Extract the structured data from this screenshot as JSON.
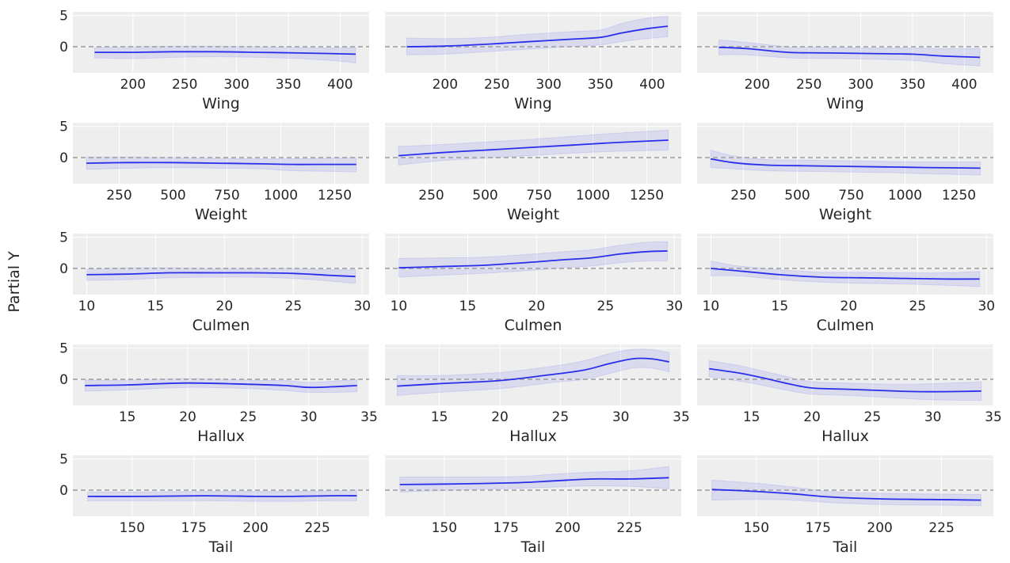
{
  "figure": {
    "ylabel": "Partial Y",
    "ylim": [
      -4.2,
      5.6
    ],
    "yticks": [
      0,
      5
    ],
    "line_color": "#2a2eec",
    "band_color": "#2a2eec",
    "reference_line_color": "#a8a8a8",
    "panel_bg": "#eeeeee",
    "grid_color": "#ffffff"
  },
  "chart_data": [
    {
      "type": "line",
      "row": 0,
      "col": 0,
      "xlabel": "Wing",
      "xlim": [
        142,
        428
      ],
      "xticks": [
        200,
        250,
        300,
        350,
        400
      ],
      "x": [
        163,
        200,
        240,
        280,
        320,
        360,
        390,
        415
      ],
      "y": [
        -0.9,
        -0.9,
        -0.8,
        -0.8,
        -0.9,
        -1.0,
        -1.1,
        -1.2
      ],
      "lower": [
        -1.8,
        -1.9,
        -1.7,
        -1.6,
        -1.7,
        -1.9,
        -2.2,
        -2.6
      ],
      "upper": [
        -0.1,
        0.0,
        0.1,
        0.1,
        0.0,
        -0.1,
        -0.2,
        -0.1
      ]
    },
    {
      "type": "line",
      "row": 0,
      "col": 1,
      "xlabel": "Wing",
      "xlim": [
        142,
        428
      ],
      "xticks": [
        200,
        250,
        300,
        350,
        400
      ],
      "x": [
        163,
        200,
        240,
        280,
        320,
        350,
        370,
        395,
        415
      ],
      "y": [
        0.0,
        0.1,
        0.4,
        0.8,
        1.2,
        1.5,
        2.2,
        2.9,
        3.3
      ],
      "lower": [
        -1.3,
        -1.2,
        -0.8,
        -0.4,
        0.0,
        0.3,
        0.8,
        1.3,
        1.6
      ],
      "upper": [
        1.4,
        1.3,
        1.5,
        2.0,
        2.4,
        2.7,
        3.7,
        4.6,
        4.9
      ]
    },
    {
      "type": "line",
      "row": 0,
      "col": 2,
      "xlabel": "Wing",
      "xlim": [
        142,
        428
      ],
      "xticks": [
        200,
        250,
        300,
        350,
        400
      ],
      "x": [
        163,
        190,
        230,
        270,
        310,
        350,
        380,
        415
      ],
      "y": [
        -0.1,
        -0.3,
        -0.9,
        -1.0,
        -1.1,
        -1.2,
        -1.5,
        -1.7
      ],
      "lower": [
        -1.3,
        -1.3,
        -1.8,
        -1.9,
        -2.0,
        -2.2,
        -2.7,
        -3.1
      ],
      "upper": [
        1.1,
        0.7,
        0.0,
        -0.1,
        -0.2,
        -0.2,
        -0.3,
        -0.3
      ]
    },
    {
      "type": "line",
      "row": 1,
      "col": 0,
      "xlabel": "Weight",
      "xlim": [
        35,
        1410
      ],
      "xticks": [
        250,
        500,
        750,
        1000,
        1250
      ],
      "x": [
        98,
        300,
        500,
        700,
        900,
        1050,
        1200,
        1350
      ],
      "y": [
        -0.9,
        -0.8,
        -0.8,
        -0.9,
        -1.0,
        -1.1,
        -1.1,
        -1.1
      ],
      "lower": [
        -1.9,
        -1.7,
        -1.6,
        -1.7,
        -1.8,
        -2.1,
        -2.2,
        -2.3
      ],
      "upper": [
        0.1,
        0.1,
        0.0,
        -0.1,
        -0.2,
        -0.2,
        -0.1,
        0.0
      ]
    },
    {
      "type": "line",
      "row": 1,
      "col": 1,
      "xlabel": "Weight",
      "xlim": [
        35,
        1410
      ],
      "xticks": [
        250,
        500,
        750,
        1000,
        1250
      ],
      "x": [
        98,
        300,
        500,
        700,
        900,
        1100,
        1350
      ],
      "y": [
        0.3,
        0.8,
        1.2,
        1.6,
        2.0,
        2.4,
        2.8
      ],
      "lower": [
        -1.2,
        -0.5,
        -0.1,
        0.3,
        0.7,
        1.0,
        1.2
      ],
      "upper": [
        1.8,
        2.1,
        2.5,
        2.9,
        3.4,
        3.9,
        4.4
      ]
    },
    {
      "type": "line",
      "row": 1,
      "col": 2,
      "xlabel": "Weight",
      "xlim": [
        35,
        1410
      ],
      "xticks": [
        250,
        500,
        750,
        1000,
        1250
      ],
      "x": [
        98,
        200,
        350,
        500,
        700,
        900,
        1100,
        1350
      ],
      "y": [
        -0.2,
        -0.8,
        -1.2,
        -1.3,
        -1.4,
        -1.5,
        -1.6,
        -1.7
      ],
      "lower": [
        -1.6,
        -1.8,
        -2.1,
        -2.2,
        -2.3,
        -2.4,
        -2.6,
        -2.8
      ],
      "upper": [
        1.2,
        0.3,
        -0.3,
        -0.4,
        -0.5,
        -0.6,
        -0.7,
        -0.7
      ]
    },
    {
      "type": "line",
      "row": 2,
      "col": 0,
      "xlabel": "Culmen",
      "xlim": [
        9.0,
        30.5
      ],
      "xticks": [
        10,
        15,
        20,
        25,
        30
      ],
      "x": [
        10,
        13,
        16,
        19,
        22,
        25,
        27.5,
        29.5
      ],
      "y": [
        -1.0,
        -0.9,
        -0.7,
        -0.7,
        -0.7,
        -0.8,
        -1.1,
        -1.3
      ],
      "lower": [
        -1.9,
        -1.8,
        -1.5,
        -1.4,
        -1.4,
        -1.6,
        -2.0,
        -2.4
      ],
      "upper": [
        -0.1,
        0.1,
        0.1,
        0.0,
        0.0,
        0.0,
        -0.2,
        -0.2
      ]
    },
    {
      "type": "line",
      "row": 2,
      "col": 1,
      "xlabel": "Culmen",
      "xlim": [
        9.0,
        30.5
      ],
      "xticks": [
        10,
        15,
        20,
        25,
        30
      ],
      "x": [
        10,
        13,
        16,
        19,
        22,
        24,
        26,
        28,
        29.5
      ],
      "y": [
        0.1,
        0.3,
        0.5,
        0.9,
        1.4,
        1.7,
        2.3,
        2.7,
        2.8
      ],
      "lower": [
        -1.4,
        -1.1,
        -0.8,
        -0.4,
        0.1,
        0.4,
        0.9,
        1.2,
        1.2
      ],
      "upper": [
        1.6,
        1.7,
        1.8,
        2.2,
        2.7,
        3.0,
        3.7,
        4.2,
        4.3
      ]
    },
    {
      "type": "line",
      "row": 2,
      "col": 2,
      "xlabel": "Culmen",
      "xlim": [
        9.0,
        30.5
      ],
      "xticks": [
        10,
        15,
        20,
        25,
        30
      ],
      "x": [
        10,
        12,
        15,
        18,
        21,
        24,
        27,
        29.5
      ],
      "y": [
        0.0,
        -0.4,
        -1.0,
        -1.4,
        -1.5,
        -1.6,
        -1.7,
        -1.7
      ],
      "lower": [
        -1.2,
        -1.2,
        -1.8,
        -2.2,
        -2.4,
        -2.5,
        -2.7,
        -2.9
      ],
      "upper": [
        1.2,
        0.4,
        -0.2,
        -0.6,
        -0.6,
        -0.7,
        -0.7,
        -0.5
      ]
    },
    {
      "type": "line",
      "row": 3,
      "col": 0,
      "xlabel": "Hallux",
      "xlim": [
        10.5,
        35.0
      ],
      "xticks": [
        15,
        20,
        25,
        30,
        35
      ],
      "x": [
        11.5,
        15,
        20,
        25,
        28,
        30,
        32,
        34
      ],
      "y": [
        -1.0,
        -0.9,
        -0.6,
        -0.8,
        -1.0,
        -1.3,
        -1.2,
        -1.0
      ],
      "lower": [
        -1.9,
        -1.7,
        -1.3,
        -1.5,
        -1.8,
        -2.1,
        -2.1,
        -2.0
      ],
      "upper": [
        -0.1,
        -0.1,
        0.1,
        -0.1,
        -0.2,
        -0.5,
        -0.3,
        0.0
      ]
    },
    {
      "type": "line",
      "row": 3,
      "col": 1,
      "xlabel": "Hallux",
      "xlim": [
        10.5,
        35.0
      ],
      "xticks": [
        15,
        20,
        25,
        30,
        35
      ],
      "x": [
        11.5,
        15,
        20,
        24,
        27,
        29,
        31,
        32.5,
        34
      ],
      "y": [
        -1.1,
        -0.7,
        -0.2,
        0.7,
        1.5,
        2.5,
        3.3,
        3.3,
        2.8
      ],
      "lower": [
        -2.6,
        -2.1,
        -1.5,
        -0.6,
        0.0,
        0.9,
        1.8,
        1.8,
        1.2
      ],
      "upper": [
        0.6,
        0.6,
        1.1,
        2.0,
        3.0,
        4.1,
        4.8,
        4.8,
        4.3
      ]
    },
    {
      "type": "line",
      "row": 3,
      "col": 2,
      "xlabel": "Hallux",
      "xlim": [
        10.5,
        35.0
      ],
      "xticks": [
        15,
        20,
        25,
        30,
        35
      ],
      "x": [
        11.5,
        14,
        16,
        18,
        20,
        23,
        27,
        30,
        34
      ],
      "y": [
        1.7,
        1.0,
        0.2,
        -0.7,
        -1.4,
        -1.6,
        -1.9,
        -2.0,
        -1.9
      ],
      "lower": [
        0.4,
        -0.3,
        -1.0,
        -1.8,
        -2.4,
        -2.6,
        -3.0,
        -3.3,
        -3.4
      ],
      "upper": [
        3.0,
        2.2,
        1.3,
        0.4,
        -0.4,
        -0.6,
        -0.8,
        -0.7,
        -0.4
      ]
    },
    {
      "type": "line",
      "row": 4,
      "col": 0,
      "xlabel": "Tail",
      "xlim": [
        126,
        246
      ],
      "xticks": [
        150,
        175,
        200,
        225
      ],
      "x": [
        132,
        155,
        180,
        200,
        215,
        230,
        241
      ],
      "y": [
        -1.0,
        -1.0,
        -0.9,
        -1.0,
        -1.0,
        -0.9,
        -0.9
      ],
      "lower": [
        -1.7,
        -1.7,
        -1.7,
        -1.8,
        -1.8,
        -1.7,
        -1.7
      ],
      "upper": [
        -0.3,
        -0.3,
        -0.2,
        -0.2,
        -0.2,
        -0.1,
        0.0
      ]
    },
    {
      "type": "line",
      "row": 4,
      "col": 1,
      "xlabel": "Tail",
      "xlim": [
        126,
        246
      ],
      "xticks": [
        150,
        175,
        200,
        225
      ],
      "x": [
        132,
        155,
        180,
        195,
        210,
        225,
        241
      ],
      "y": [
        0.9,
        1.0,
        1.2,
        1.5,
        1.8,
        1.8,
        2.0
      ],
      "lower": [
        -0.3,
        0.0,
        0.3,
        0.5,
        0.7,
        0.6,
        0.2
      ],
      "upper": [
        2.1,
        2.1,
        2.2,
        2.6,
        2.9,
        3.1,
        3.8
      ]
    },
    {
      "type": "line",
      "row": 4,
      "col": 2,
      "xlabel": "Tail",
      "xlim": [
        126,
        246
      ],
      "xticks": [
        150,
        175,
        200,
        225
      ],
      "x": [
        132,
        150,
        165,
        180,
        200,
        220,
        241
      ],
      "y": [
        0.1,
        -0.2,
        -0.6,
        -1.1,
        -1.4,
        -1.5,
        -1.6
      ],
      "lower": [
        -1.6,
        -1.5,
        -1.6,
        -2.0,
        -2.3,
        -2.4,
        -2.5
      ],
      "upper": [
        1.6,
        1.1,
        0.5,
        -0.2,
        -0.5,
        -0.6,
        -0.7
      ]
    }
  ]
}
